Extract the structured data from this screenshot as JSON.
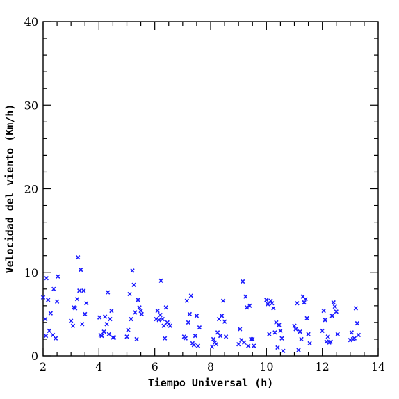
{
  "chart_data": {
    "type": "scatter",
    "title": "",
    "xlabel": "Tiempo Universal (h)",
    "ylabel": "Velocidad del viento (Km/h)",
    "xlim": [
      2,
      14
    ],
    "ylim": [
      0,
      40
    ],
    "xticks": [
      2,
      4,
      6,
      8,
      10,
      12,
      14
    ],
    "yticks": [
      0,
      10,
      20,
      30,
      40
    ],
    "grid": false,
    "marker": "x",
    "color": "#1a1aff",
    "series": [
      {
        "points": [
          [
            2.0,
            7.0
          ],
          [
            2.08,
            4.4
          ],
          [
            2.1,
            2.4
          ],
          [
            2.12,
            9.3
          ],
          [
            2.18,
            6.7
          ],
          [
            2.22,
            3.0
          ],
          [
            2.27,
            5.1
          ],
          [
            2.35,
            2.5
          ],
          [
            2.38,
            8.0
          ],
          [
            2.45,
            2.1
          ],
          [
            2.5,
            6.5
          ],
          [
            2.53,
            9.5
          ],
          [
            3.0,
            4.2
          ],
          [
            3.07,
            3.6
          ],
          [
            3.1,
            5.8
          ],
          [
            3.15,
            5.7
          ],
          [
            3.22,
            6.8
          ],
          [
            3.25,
            11.8
          ],
          [
            3.3,
            7.8
          ],
          [
            3.35,
            10.3
          ],
          [
            3.4,
            3.8
          ],
          [
            3.45,
            7.8
          ],
          [
            3.5,
            5.0
          ],
          [
            3.55,
            6.3
          ],
          [
            4.02,
            4.6
          ],
          [
            4.06,
            2.5
          ],
          [
            4.1,
            2.4
          ],
          [
            4.18,
            2.9
          ],
          [
            4.22,
            4.7
          ],
          [
            4.28,
            3.8
          ],
          [
            4.32,
            7.6
          ],
          [
            4.36,
            2.6
          ],
          [
            4.4,
            4.4
          ],
          [
            4.45,
            5.4
          ],
          [
            4.5,
            2.2
          ],
          [
            4.55,
            2.2
          ],
          [
            5.0,
            2.3
          ],
          [
            5.05,
            3.1
          ],
          [
            5.1,
            7.4
          ],
          [
            5.15,
            4.4
          ],
          [
            5.2,
            10.2
          ],
          [
            5.25,
            8.5
          ],
          [
            5.3,
            5.2
          ],
          [
            5.35,
            2.0
          ],
          [
            5.4,
            6.7
          ],
          [
            5.45,
            5.8
          ],
          [
            5.5,
            5.4
          ],
          [
            5.53,
            5.0
          ],
          [
            6.05,
            4.4
          ],
          [
            6.1,
            5.4
          ],
          [
            6.15,
            4.3
          ],
          [
            6.2,
            4.9
          ],
          [
            6.22,
            9.0
          ],
          [
            6.28,
            4.4
          ],
          [
            6.32,
            3.6
          ],
          [
            6.36,
            2.1
          ],
          [
            6.4,
            5.8
          ],
          [
            6.45,
            4.0
          ],
          [
            6.5,
            3.8
          ],
          [
            6.55,
            3.6
          ],
          [
            7.05,
            2.3
          ],
          [
            7.1,
            2.1
          ],
          [
            7.15,
            6.6
          ],
          [
            7.2,
            4.0
          ],
          [
            7.25,
            5.0
          ],
          [
            7.3,
            7.2
          ],
          [
            7.35,
            1.5
          ],
          [
            7.4,
            1.3
          ],
          [
            7.45,
            2.4
          ],
          [
            7.5,
            4.8
          ],
          [
            7.55,
            1.2
          ],
          [
            7.6,
            3.4
          ],
          [
            8.05,
            1.1
          ],
          [
            8.1,
            2.0
          ],
          [
            8.15,
            1.6
          ],
          [
            8.2,
            1.4
          ],
          [
            8.25,
            2.8
          ],
          [
            8.3,
            4.4
          ],
          [
            8.35,
            2.4
          ],
          [
            8.4,
            4.8
          ],
          [
            8.45,
            6.6
          ],
          [
            8.5,
            4.1
          ],
          [
            8.55,
            2.3
          ],
          [
            9.0,
            1.4
          ],
          [
            9.05,
            3.2
          ],
          [
            9.1,
            1.9
          ],
          [
            9.15,
            8.9
          ],
          [
            9.2,
            1.6
          ],
          [
            9.25,
            7.1
          ],
          [
            9.3,
            5.8
          ],
          [
            9.35,
            1.2
          ],
          [
            9.4,
            6.0
          ],
          [
            9.45,
            2.0
          ],
          [
            9.5,
            2.0
          ],
          [
            9.55,
            1.2
          ],
          [
            10.0,
            6.7
          ],
          [
            10.05,
            6.2
          ],
          [
            10.1,
            2.6
          ],
          [
            10.15,
            6.6
          ],
          [
            10.2,
            6.3
          ],
          [
            10.25,
            5.7
          ],
          [
            10.3,
            2.8
          ],
          [
            10.35,
            4.0
          ],
          [
            10.4,
            1.0
          ],
          [
            10.45,
            3.7
          ],
          [
            10.5,
            3.0
          ],
          [
            10.55,
            2.1
          ],
          [
            10.6,
            0.6
          ],
          [
            11.0,
            3.6
          ],
          [
            11.05,
            3.2
          ],
          [
            11.1,
            6.3
          ],
          [
            11.15,
            0.7
          ],
          [
            11.2,
            2.9
          ],
          [
            11.25,
            2.0
          ],
          [
            11.3,
            7.1
          ],
          [
            11.35,
            6.4
          ],
          [
            11.4,
            6.8
          ],
          [
            11.45,
            4.5
          ],
          [
            11.5,
            2.6
          ],
          [
            11.55,
            1.5
          ],
          [
            12.0,
            3.0
          ],
          [
            12.05,
            5.4
          ],
          [
            12.1,
            4.3
          ],
          [
            12.15,
            1.7
          ],
          [
            12.2,
            2.3
          ],
          [
            12.25,
            1.6
          ],
          [
            12.3,
            1.7
          ],
          [
            12.35,
            4.8
          ],
          [
            12.4,
            6.4
          ],
          [
            12.45,
            5.9
          ],
          [
            12.5,
            5.3
          ],
          [
            12.55,
            2.6
          ],
          [
            13.0,
            1.9
          ],
          [
            13.05,
            2.8
          ],
          [
            13.1,
            2.0
          ],
          [
            13.15,
            2.1
          ],
          [
            13.2,
            5.7
          ],
          [
            13.25,
            3.9
          ],
          [
            13.3,
            2.5
          ]
        ]
      }
    ]
  }
}
